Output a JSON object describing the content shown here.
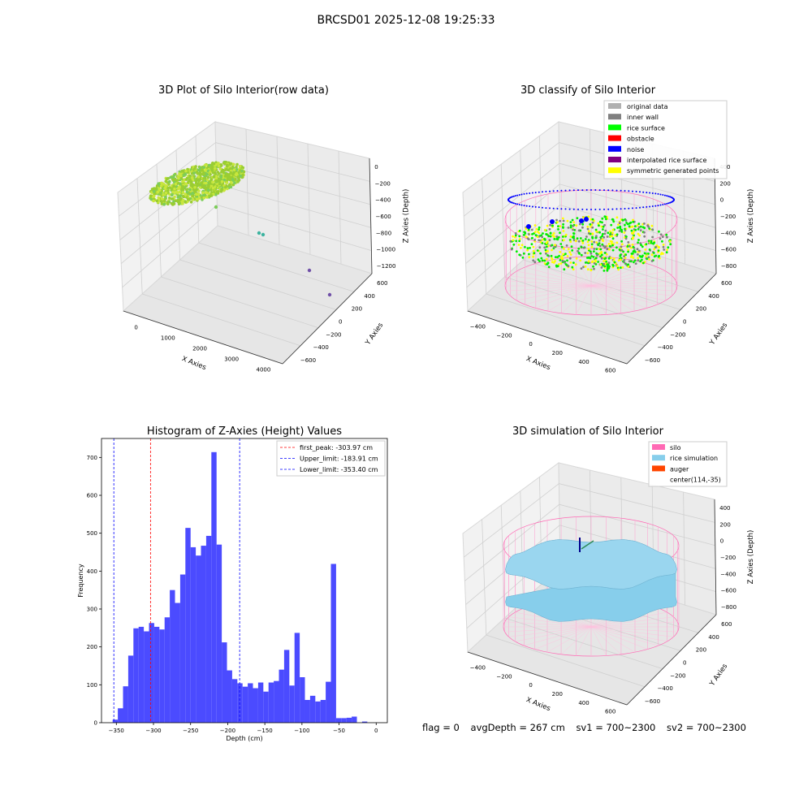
{
  "figure_title": "BRCSD01 2025-12-08 19:25:33",
  "panels": {
    "raw": {
      "title": "3D Plot of Silo Interior(row data)",
      "xlabel": "X Axies",
      "ylabel": "Y Axies",
      "zlabel": "Z Axies (Depth)",
      "xticks": [
        "0",
        "1000",
        "2000",
        "3000",
        "4000"
      ],
      "yticks": [
        "600",
        "400",
        "200",
        "0",
        "−200",
        "−400",
        "−600"
      ],
      "zticks": [
        "0",
        "−200",
        "−400",
        "−600",
        "−800",
        "−1000",
        "−1200"
      ]
    },
    "classify": {
      "title": "3D classify of Silo Interior",
      "xlabel": "X Axies",
      "ylabel": "Y Axies",
      "zlabel": "Z Axies (Depth)",
      "xticks": [
        "−400",
        "−200",
        "0",
        "200",
        "400",
        "600"
      ],
      "yticks": [
        "600",
        "400",
        "200",
        "0",
        "−200",
        "−400",
        "−600"
      ],
      "zticks": [
        "400",
        "200",
        "0",
        "−200",
        "−400",
        "−600",
        "−800"
      ],
      "legend": [
        {
          "label": "original data",
          "color": "#b0b0b0"
        },
        {
          "label": "inner wall",
          "color": "#808080"
        },
        {
          "label": "rice surface",
          "color": "#00ff00"
        },
        {
          "label": "obstacle",
          "color": "#ff0000"
        },
        {
          "label": "noise",
          "color": "#0000ff"
        },
        {
          "label": "interpolated rice surface",
          "color": "#800080"
        },
        {
          "label": "symmetric generated points",
          "color": "#ffff00"
        }
      ]
    },
    "simulation": {
      "title": "3D simulation of Silo Interior",
      "xlabel": "X Axies",
      "ylabel": "Y Axies",
      "zlabel": "Z Axies (Depth)",
      "xticks": [
        "−400",
        "−200",
        "0",
        "200",
        "400",
        "600"
      ],
      "yticks": [
        "600",
        "400",
        "200",
        "0",
        "−200",
        "−400",
        "−600"
      ],
      "zticks": [
        "400",
        "200",
        "0",
        "−200",
        "−400",
        "−600",
        "−800"
      ],
      "legend": [
        {
          "label": "silo",
          "color": "#ff69b4"
        },
        {
          "label": "rice simulation",
          "color": "#87ceeb"
        },
        {
          "label": "auger",
          "color": "#ff4500"
        },
        {
          "label": "center(114,-35)",
          "color": ""
        }
      ]
    }
  },
  "status": {
    "flag": "flag = 0",
    "avg_depth": "avgDepth = 267 cm",
    "sv1": "sv1 = 700~2300",
    "sv2": "sv2 = 700~2300"
  },
  "chart_data": [
    {
      "type": "bar",
      "title": "Histogram of Z-Axies (Height) Values",
      "xlabel": "Depth (cm)",
      "ylabel": "Frequency",
      "xlim": [
        -370,
        15
      ],
      "ylim": [
        0,
        750
      ],
      "xticks": [
        -350,
        -300,
        -250,
        -200,
        -150,
        -100,
        -50,
        0
      ],
      "yticks": [
        0,
        100,
        200,
        300,
        400,
        500,
        600,
        700
      ],
      "bar_color": "#4b4bff",
      "bin_start": -355,
      "bin_width": 7.0,
      "values": [
        8,
        38,
        96,
        177,
        249,
        253,
        241,
        263,
        253,
        246,
        278,
        350,
        316,
        391,
        514,
        463,
        441,
        467,
        493,
        714,
        470,
        212,
        138,
        115,
        104,
        95,
        104,
        91,
        106,
        82,
        106,
        110,
        140,
        192,
        98,
        237,
        120,
        60,
        71,
        56,
        60,
        108,
        419,
        12,
        12,
        13,
        16,
        0,
        3,
        0
      ],
      "vlines": [
        {
          "x": -303.97,
          "label": "first_peak: -303.97 cm",
          "color": "#ff0000"
        },
        {
          "x": -183.91,
          "label": "Upper_limit: -183.91 cm",
          "color": "#0000ff"
        },
        {
          "x": -353.4,
          "label": "Lower_limit: -353.40 cm",
          "color": "#0000ff"
        }
      ],
      "legend_position": "top-right"
    }
  ]
}
